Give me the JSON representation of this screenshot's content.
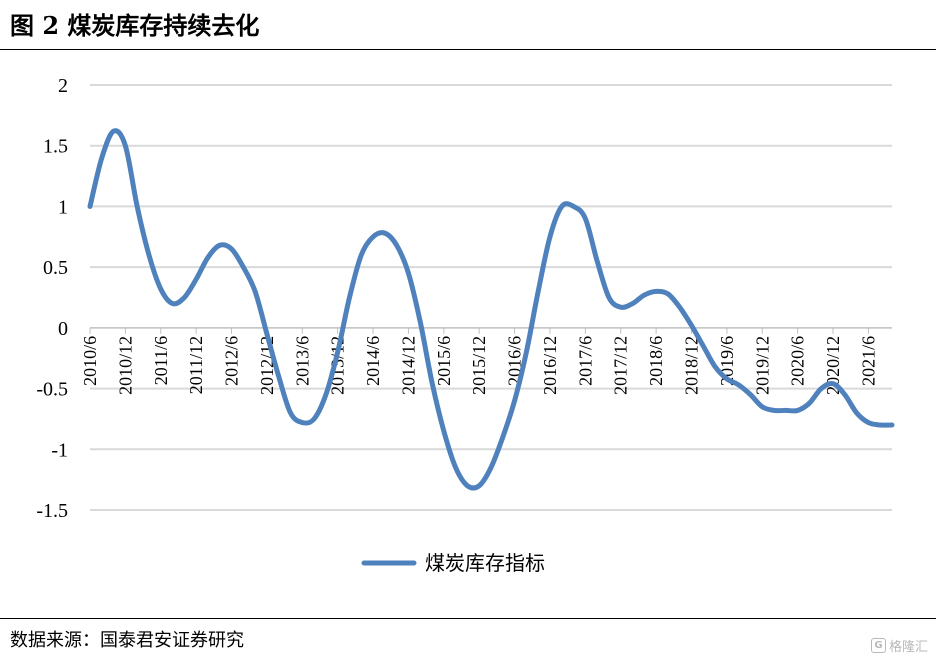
{
  "figure": {
    "title": "图 2  煤炭库存持续去化",
    "source": "数据来源：国泰君安证券研究",
    "watermark": "格隆汇"
  },
  "chart_data": {
    "type": "line",
    "title": "",
    "xlabel": "",
    "ylabel": "",
    "ylim": [
      -1.5,
      2
    ],
    "yticks": [
      2,
      1.5,
      1,
      0.5,
      0,
      -0.5,
      -1,
      -1.5
    ],
    "ytick_labels": [
      "2",
      "1.5",
      "1",
      "0.5",
      "0",
      "-0.5",
      "-1",
      "-1.5"
    ],
    "xtick_labels": [
      "2010/6",
      "2010/12",
      "2011/6",
      "2011/12",
      "2012/6",
      "2012/12",
      "2013/6",
      "2013/12",
      "2014/6",
      "2014/12",
      "2015/6",
      "2015/12",
      "2016/6",
      "2016/12",
      "2017/6",
      "2017/12",
      "2018/6",
      "2018/12",
      "2019/6",
      "2019/12",
      "2020/6",
      "2020/12",
      "2021/6"
    ],
    "grid": true,
    "legend_position": "bottom",
    "color": "#4f81bd",
    "series": [
      {
        "name": "煤炭库存指标",
        "x": [
          "2010/6",
          "2010/8",
          "2010/10",
          "2010/12",
          "2011/2",
          "2011/4",
          "2011/6",
          "2011/8",
          "2011/10",
          "2011/12",
          "2012/2",
          "2012/4",
          "2012/6",
          "2012/8",
          "2012/10",
          "2012/12",
          "2013/2",
          "2013/4",
          "2013/6",
          "2013/8",
          "2013/10",
          "2013/12",
          "2014/2",
          "2014/4",
          "2014/6",
          "2014/8",
          "2014/10",
          "2014/12",
          "2015/2",
          "2015/4",
          "2015/6",
          "2015/8",
          "2015/10",
          "2015/12",
          "2016/2",
          "2016/4",
          "2016/6",
          "2016/8",
          "2016/10",
          "2016/12",
          "2017/2",
          "2017/4",
          "2017/6",
          "2017/8",
          "2017/10",
          "2017/12",
          "2018/2",
          "2018/4",
          "2018/6",
          "2018/8",
          "2018/10",
          "2018/12",
          "2019/2",
          "2019/4",
          "2019/6",
          "2019/8",
          "2019/10",
          "2019/12",
          "2020/2",
          "2020/4",
          "2020/6",
          "2020/8",
          "2020/10",
          "2020/12",
          "2021/2",
          "2021/4",
          "2021/6",
          "2021/8",
          "2021/10"
        ],
        "values": [
          1.0,
          1.4,
          1.62,
          1.5,
          1.0,
          0.6,
          0.32,
          0.2,
          0.25,
          0.4,
          0.58,
          0.68,
          0.65,
          0.5,
          0.3,
          -0.05,
          -0.4,
          -0.7,
          -0.78,
          -0.75,
          -0.55,
          -0.2,
          0.25,
          0.6,
          0.75,
          0.78,
          0.68,
          0.45,
          0.05,
          -0.45,
          -0.85,
          -1.15,
          -1.3,
          -1.3,
          -1.15,
          -0.9,
          -0.6,
          -0.2,
          0.3,
          0.75,
          1.0,
          1.0,
          0.9,
          0.55,
          0.25,
          0.17,
          0.2,
          0.27,
          0.3,
          0.28,
          0.17,
          0.02,
          -0.15,
          -0.32,
          -0.42,
          -0.47,
          -0.55,
          -0.65,
          -0.68,
          -0.68,
          -0.68,
          -0.62,
          -0.5,
          -0.46,
          -0.55,
          -0.7,
          -0.78,
          -0.8,
          -0.8
        ]
      }
    ]
  }
}
